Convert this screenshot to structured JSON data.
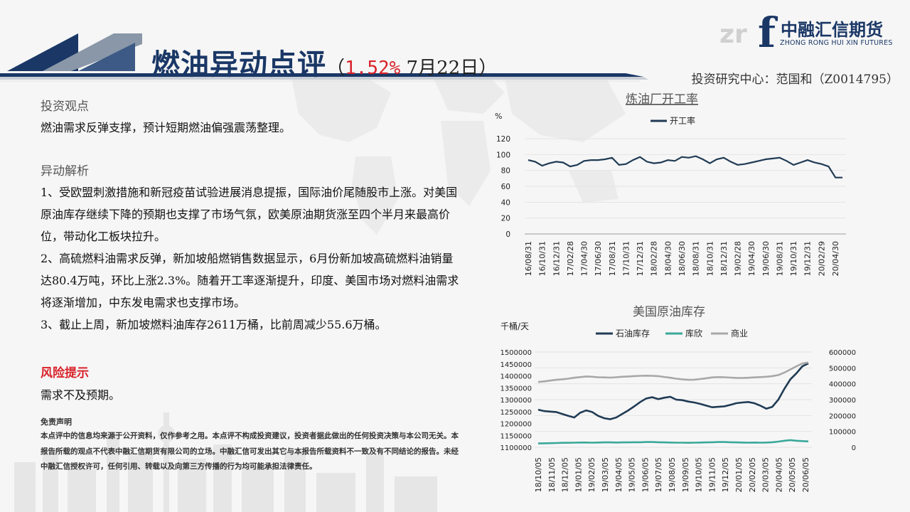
{
  "header": {
    "title_main": "燃油异动点评",
    "title_open": "（",
    "title_pct": "1.52%",
    "title_date": " 7月22日）",
    "author": "投资研究中心：范国和（Z0014795）"
  },
  "logo": {
    "cn": "中融汇信期货",
    "en": "ZHONG RONG HUI XIN FUTURES",
    "letter": "f",
    "faint": "zr"
  },
  "colors": {
    "navy": "#1a3766",
    "red": "#d8232a",
    "series_dark": "#203b55",
    "series_teal": "#3aa89a",
    "series_gray": "#a8a8a8"
  },
  "content": {
    "view_heading": "投资观点",
    "view_text": "燃油需求反弹支撑，预计短期燃油偏强震荡整理。",
    "analysis_heading": "异动解析",
    "analysis_paras": [
      "1、受欧盟刺激措施和新冠疫苗试验进展消息提振，国际油价尾随股市上涨。对美国原油库存继续下降的预期也支撑了市场气氛，欧美原油期货涨至四个半月来最高价位，带动化工板块拉升。",
      "2、高硫燃料油需求反弹，新加坡船燃销售数据显示，6月份新加坡高硫燃料油销量达80.4万吨，环比上涨2.3%。随着开工率逐渐提升，印度、美国市场对燃料油需求将逐渐增加，中东发电需求也支撑市场。",
      "3、截止上周，新加坡燃料油库存2611万桶，比前周减少55.6万桶。"
    ],
    "risk_heading": "风险提示",
    "risk_text": "需求不及预期。",
    "disclaimer_heading": "免责声明",
    "disclaimer_text": "本点评中的信息均来源于公开资料，仅作参考之用。本点评不构成投资建议，投资者据此做出的任何投资决策与本公司无关。本报告所载的观点不代表中融汇信期货有限公司的立场。中融汇信可发出其它与本报告所载资料不一致及有不同结论的报告。未经中融汇信授权许可，任何引用、转载以及向第三方传播的行为均可能承担法律责任。"
  },
  "chart_data": [
    {
      "type": "line",
      "title": "炼油厂开工率",
      "ylabel": "%",
      "ylim": [
        0,
        120
      ],
      "yticks": [
        0,
        20,
        40,
        60,
        80,
        100,
        120
      ],
      "x_tick_labels": [
        "16/08/31",
        "16/10/31",
        "16/12/31",
        "17/02/28",
        "17/04/30",
        "17/06/30",
        "17/08/31",
        "17/10/31",
        "17/12/31",
        "18/02/28",
        "18/04/30",
        "18/06/30",
        "18/08/31",
        "18/10/31",
        "18/12/31",
        "19/02/28",
        "19/04/30",
        "19/06/30",
        "19/08/31",
        "19/10/31",
        "19/12/31",
        "20/02/29",
        "20/04/30"
      ],
      "legend": "top",
      "series": [
        {
          "name": "开工率",
          "color": "#203b55",
          "values": [
            93,
            91,
            86,
            89,
            91,
            90,
            85,
            87,
            92,
            93,
            93,
            94,
            96,
            87,
            88,
            93,
            97,
            91,
            89,
            90,
            93,
            92,
            97,
            96,
            98,
            94,
            89,
            94,
            96,
            91,
            87,
            88,
            90,
            92,
            94,
            95,
            96,
            92,
            87,
            90,
            93,
            90,
            88,
            85,
            71,
            71
          ]
        }
      ]
    },
    {
      "type": "line",
      "title": "美国原油库存",
      "ylabel": "千桶/天",
      "ylim": [
        1100000,
        1500000
      ],
      "y2lim": [
        0,
        600000
      ],
      "yticks": [
        1100000,
        1150000,
        1200000,
        1250000,
        1300000,
        1350000,
        1400000,
        1450000,
        1500000
      ],
      "y2ticks": [
        0,
        100000,
        200000,
        300000,
        400000,
        500000,
        600000
      ],
      "x_tick_labels": [
        "18/10/05",
        "18/11/05",
        "18/12/05",
        "19/01/05",
        "19/02/05",
        "19/03/05",
        "19/04/05",
        "19/05/05",
        "19/06/05",
        "19/07/05",
        "19/08/05",
        "19/09/05",
        "19/10/05",
        "19/11/05",
        "19/12/05",
        "20/01/05",
        "20/02/05",
        "20/03/05",
        "20/04/05",
        "20/05/05",
        "20/06/05"
      ],
      "legend": "top",
      "series": [
        {
          "name": "石油库存",
          "axis": "left",
          "color": "#203b55",
          "values": [
            1258000,
            1252000,
            1250000,
            1248000,
            1240000,
            1232000,
            1225000,
            1245000,
            1255000,
            1248000,
            1232000,
            1222000,
            1218000,
            1225000,
            1240000,
            1255000,
            1272000,
            1290000,
            1305000,
            1310000,
            1302000,
            1308000,
            1312000,
            1300000,
            1298000,
            1292000,
            1288000,
            1282000,
            1275000,
            1268000,
            1270000,
            1272000,
            1278000,
            1285000,
            1288000,
            1290000,
            1285000,
            1275000,
            1262000,
            1270000,
            1300000,
            1345000,
            1385000,
            1410000,
            1440000,
            1452000
          ]
        },
        {
          "name": "库欣",
          "axis": "right",
          "color": "#3aa89a",
          "values": [
            24000,
            25000,
            26000,
            27000,
            28000,
            28000,
            29000,
            30000,
            30000,
            29000,
            30000,
            31000,
            31000,
            30000,
            31000,
            31000,
            32000,
            32000,
            33000,
            33000,
            32000,
            31000,
            30000,
            29000,
            29000,
            28000,
            29000,
            30000,
            31000,
            32000,
            33000,
            33000,
            32000,
            31000,
            30000,
            29000,
            30000,
            29000,
            30000,
            32000,
            36000,
            41000,
            45000,
            41000,
            39000,
            37000
          ]
        },
        {
          "name": "商业",
          "axis": "right",
          "color": "#a8a8a8",
          "values": [
            411000,
            415000,
            420000,
            425000,
            428000,
            432000,
            438000,
            442000,
            446000,
            444000,
            441000,
            440000,
            439000,
            441000,
            444000,
            446000,
            448000,
            450000,
            451000,
            450000,
            448000,
            443000,
            438000,
            432000,
            428000,
            425000,
            426000,
            430000,
            435000,
            440000,
            442000,
            441000,
            439000,
            437000,
            436000,
            438000,
            440000,
            442000,
            444000,
            448000,
            455000,
            470000,
            490000,
            510000,
            528000,
            534000
          ]
        }
      ]
    }
  ]
}
